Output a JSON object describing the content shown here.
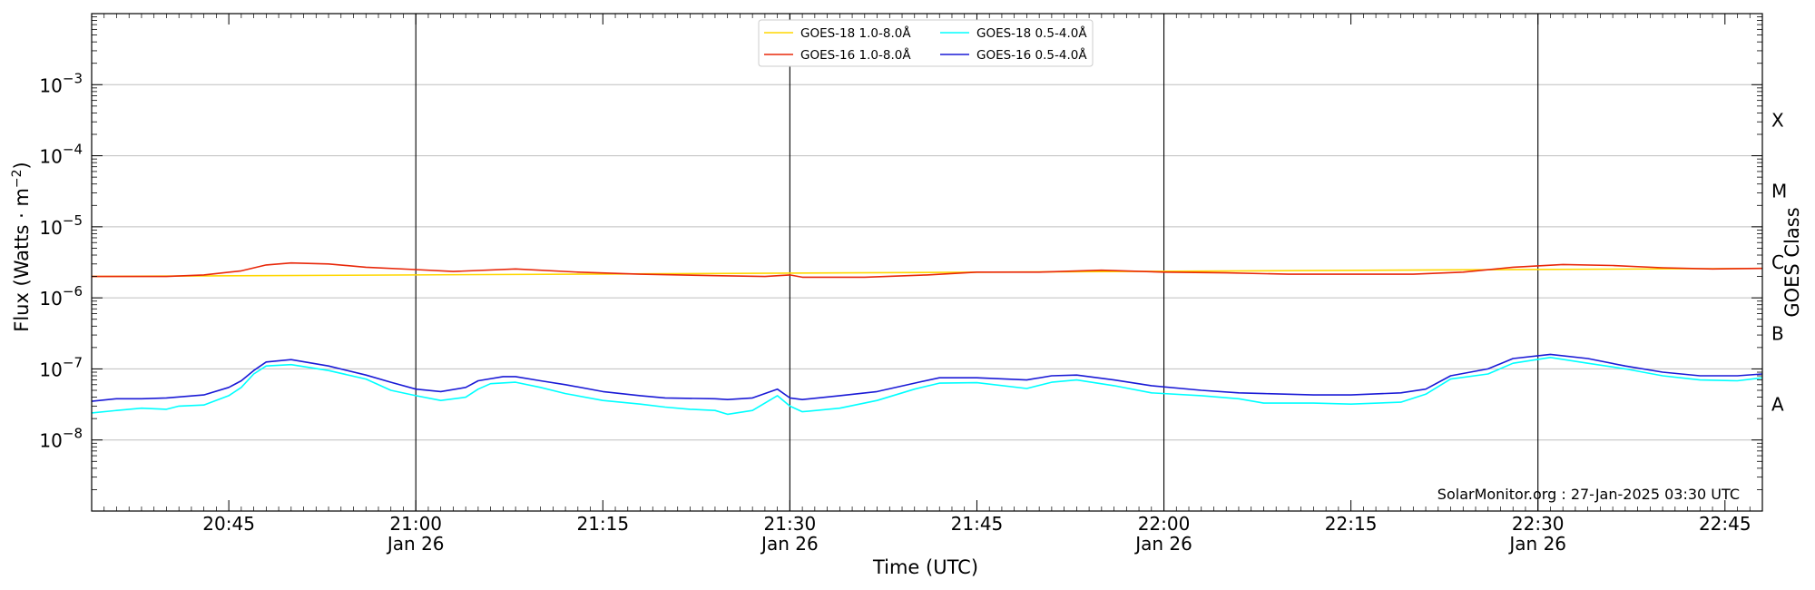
{
  "chart_data": {
    "type": "line",
    "xlabel": "Time (UTC)",
    "ylabel": "Flux (Watts · m",
    "ylabel_sup": "−2",
    "ylabel_close": ")",
    "right_axis_label": "GOES Class",
    "x_range": [
      "20:34",
      "22:48"
    ],
    "y_scale": "log",
    "ylim": [
      1e-09,
      0.01
    ],
    "y_ticks": [
      {
        "value": 1e-08,
        "label_base": "10",
        "label_exp": "−8"
      },
      {
        "value": 1e-07,
        "label_base": "10",
        "label_exp": "−7"
      },
      {
        "value": 1e-06,
        "label_base": "10",
        "label_exp": "−6"
      },
      {
        "value": 1e-05,
        "label_base": "10",
        "label_exp": "−5"
      },
      {
        "value": 0.0001,
        "label_base": "10",
        "label_exp": "−4"
      },
      {
        "value": 0.001,
        "label_base": "10",
        "label_exp": "−3"
      }
    ],
    "x_ticks": [
      {
        "time": "20:45",
        "label": "20:45",
        "date": ""
      },
      {
        "time": "21:00",
        "label": "21:00",
        "date": "Jan 26"
      },
      {
        "time": "21:15",
        "label": "21:15",
        "date": ""
      },
      {
        "time": "21:30",
        "label": "21:30",
        "date": "Jan 26"
      },
      {
        "time": "21:45",
        "label": "21:45",
        "date": ""
      },
      {
        "time": "22:00",
        "label": "22:00",
        "date": "Jan 26"
      },
      {
        "time": "22:15",
        "label": "22:15",
        "date": ""
      },
      {
        "time": "22:30",
        "label": "22:30",
        "date": "Jan 26"
      },
      {
        "time": "22:45",
        "label": "22:45",
        "date": ""
      }
    ],
    "vertical_lines": [
      "21:00",
      "21:30",
      "22:00",
      "22:30"
    ],
    "goes_classes": [
      {
        "label": "A",
        "value": 3.16e-08
      },
      {
        "label": "B",
        "value": 3.16e-07
      },
      {
        "label": "C",
        "value": 3.16e-06
      },
      {
        "label": "M",
        "value": 3.16e-05
      },
      {
        "label": "X",
        "value": 0.000316
      }
    ],
    "grid": true,
    "legend_position": "top-center",
    "credit": "SolarMonitor.org : 27-Jan-2025 03:30 UTC",
    "series": [
      {
        "name": "GOES-18 1.0-8.0Å",
        "color": "#ffd700",
        "points": [
          [
            "20:34",
            2e-06
          ],
          [
            "22:48",
            2.6e-06
          ]
        ]
      },
      {
        "name": "GOES-16 1.0-8.0Å",
        "color": "#e8280a",
        "points": [
          [
            "20:34",
            2e-06
          ],
          [
            "20:40",
            2e-06
          ],
          [
            "20:43",
            2.1e-06
          ],
          [
            "20:46",
            2.4e-06
          ],
          [
            "20:48",
            2.9e-06
          ],
          [
            "20:50",
            3.1e-06
          ],
          [
            "20:53",
            3e-06
          ],
          [
            "20:56",
            2.7e-06
          ],
          [
            "21:00",
            2.5e-06
          ],
          [
            "21:03",
            2.35e-06
          ],
          [
            "21:08",
            2.55e-06
          ],
          [
            "21:13",
            2.3e-06
          ],
          [
            "21:18",
            2.15e-06
          ],
          [
            "21:24",
            2.05e-06
          ],
          [
            "21:28",
            2e-06
          ],
          [
            "21:30",
            2.1e-06
          ],
          [
            "21:31",
            1.95e-06
          ],
          [
            "21:36",
            1.95e-06
          ],
          [
            "21:41",
            2.1e-06
          ],
          [
            "21:45",
            2.3e-06
          ],
          [
            "21:50",
            2.3e-06
          ],
          [
            "21:55",
            2.45e-06
          ],
          [
            "22:00",
            2.3e-06
          ],
          [
            "22:05",
            2.25e-06
          ],
          [
            "22:10",
            2.15e-06
          ],
          [
            "22:15",
            2.15e-06
          ],
          [
            "22:20",
            2.15e-06
          ],
          [
            "22:24",
            2.3e-06
          ],
          [
            "22:28",
            2.7e-06
          ],
          [
            "22:32",
            2.95e-06
          ],
          [
            "22:36",
            2.85e-06
          ],
          [
            "22:40",
            2.65e-06
          ],
          [
            "22:44",
            2.55e-06
          ],
          [
            "22:48",
            2.6e-06
          ]
        ]
      },
      {
        "name": "GOES-18 0.5-4.0Å",
        "color": "#00ffff",
        "points": [
          [
            "20:34",
            2.4e-08
          ],
          [
            "20:36",
            2.6e-08
          ],
          [
            "20:38",
            2.8e-08
          ],
          [
            "20:40",
            2.7e-08
          ],
          [
            "20:41",
            3e-08
          ],
          [
            "20:43",
            3.1e-08
          ],
          [
            "20:45",
            4.2e-08
          ],
          [
            "20:46",
            5.5e-08
          ],
          [
            "20:47",
            8.5e-08
          ],
          [
            "20:48",
            1.1e-07
          ],
          [
            "20:50",
            1.15e-07
          ],
          [
            "20:53",
            9.5e-08
          ],
          [
            "20:56",
            7.2e-08
          ],
          [
            "20:58",
            5e-08
          ],
          [
            "21:00",
            4.2e-08
          ],
          [
            "21:02",
            3.6e-08
          ],
          [
            "21:04",
            4e-08
          ],
          [
            "21:05",
            5.2e-08
          ],
          [
            "21:06",
            6.2e-08
          ],
          [
            "21:08",
            6.5e-08
          ],
          [
            "21:10",
            5.5e-08
          ],
          [
            "21:12",
            4.5e-08
          ],
          [
            "21:15",
            3.6e-08
          ],
          [
            "21:18",
            3.2e-08
          ],
          [
            "21:20",
            2.9e-08
          ],
          [
            "21:22",
            2.7e-08
          ],
          [
            "21:24",
            2.6e-08
          ],
          [
            "21:25",
            2.3e-08
          ],
          [
            "21:27",
            2.6e-08
          ],
          [
            "21:29",
            4.2e-08
          ],
          [
            "21:30",
            3e-08
          ],
          [
            "21:31",
            2.5e-08
          ],
          [
            "21:34",
            2.8e-08
          ],
          [
            "21:37",
            3.6e-08
          ],
          [
            "21:40",
            5.2e-08
          ],
          [
            "21:42",
            6.3e-08
          ],
          [
            "21:45",
            6.4e-08
          ],
          [
            "21:49",
            5.3e-08
          ],
          [
            "21:51",
            6.5e-08
          ],
          [
            "21:53",
            7e-08
          ],
          [
            "21:56",
            5.8e-08
          ],
          [
            "21:59",
            4.6e-08
          ],
          [
            "22:03",
            4.2e-08
          ],
          [
            "22:06",
            3.8e-08
          ],
          [
            "22:08",
            3.3e-08
          ],
          [
            "22:12",
            3.3e-08
          ],
          [
            "22:15",
            3.2e-08
          ],
          [
            "22:19",
            3.4e-08
          ],
          [
            "22:21",
            4.4e-08
          ],
          [
            "22:23",
            7.2e-08
          ],
          [
            "22:26",
            8.5e-08
          ],
          [
            "22:28",
            1.2e-07
          ],
          [
            "22:31",
            1.45e-07
          ],
          [
            "22:34",
            1.2e-07
          ],
          [
            "22:37",
            1e-07
          ],
          [
            "22:40",
            8e-08
          ],
          [
            "22:43",
            7e-08
          ],
          [
            "22:46",
            6.8e-08
          ],
          [
            "22:48",
            7.5e-08
          ]
        ]
      },
      {
        "name": "GOES-16 0.5-4.0Å",
        "color": "#1a1ad6",
        "points": [
          [
            "20:34",
            3.5e-08
          ],
          [
            "20:36",
            3.8e-08
          ],
          [
            "20:38",
            3.8e-08
          ],
          [
            "20:40",
            3.9e-08
          ],
          [
            "20:43",
            4.3e-08
          ],
          [
            "20:45",
            5.5e-08
          ],
          [
            "20:46",
            6.8e-08
          ],
          [
            "20:47",
            9.5e-08
          ],
          [
            "20:48",
            1.25e-07
          ],
          [
            "20:50",
            1.35e-07
          ],
          [
            "20:53",
            1.1e-07
          ],
          [
            "20:56",
            8.2e-08
          ],
          [
            "20:58",
            6.5e-08
          ],
          [
            "21:00",
            5.2e-08
          ],
          [
            "21:02",
            4.8e-08
          ],
          [
            "21:04",
            5.5e-08
          ],
          [
            "21:05",
            6.8e-08
          ],
          [
            "21:07",
            7.8e-08
          ],
          [
            "21:08",
            7.8e-08
          ],
          [
            "21:10",
            6.8e-08
          ],
          [
            "21:12",
            6e-08
          ],
          [
            "21:15",
            4.8e-08
          ],
          [
            "21:18",
            4.2e-08
          ],
          [
            "21:20",
            3.9e-08
          ],
          [
            "21:24",
            3.8e-08
          ],
          [
            "21:25",
            3.7e-08
          ],
          [
            "21:27",
            3.9e-08
          ],
          [
            "21:29",
            5.2e-08
          ],
          [
            "21:30",
            3.9e-08
          ],
          [
            "21:31",
            3.7e-08
          ],
          [
            "21:34",
            4.2e-08
          ],
          [
            "21:37",
            4.8e-08
          ],
          [
            "21:40",
            6.3e-08
          ],
          [
            "21:42",
            7.5e-08
          ],
          [
            "21:45",
            7.5e-08
          ],
          [
            "21:49",
            7e-08
          ],
          [
            "21:51",
            8e-08
          ],
          [
            "21:53",
            8.2e-08
          ],
          [
            "21:56",
            7e-08
          ],
          [
            "21:59",
            5.8e-08
          ],
          [
            "22:03",
            5e-08
          ],
          [
            "22:06",
            4.6e-08
          ],
          [
            "22:08",
            4.5e-08
          ],
          [
            "22:12",
            4.3e-08
          ],
          [
            "22:15",
            4.3e-08
          ],
          [
            "22:19",
            4.6e-08
          ],
          [
            "22:21",
            5.2e-08
          ],
          [
            "22:23",
            8e-08
          ],
          [
            "22:26",
            1e-07
          ],
          [
            "22:28",
            1.4e-07
          ],
          [
            "22:31",
            1.6e-07
          ],
          [
            "22:34",
            1.4e-07
          ],
          [
            "22:37",
            1.1e-07
          ],
          [
            "22:40",
            9e-08
          ],
          [
            "22:43",
            8e-08
          ],
          [
            "22:46",
            8e-08
          ],
          [
            "22:48",
            8.5e-08
          ]
        ]
      }
    ]
  }
}
